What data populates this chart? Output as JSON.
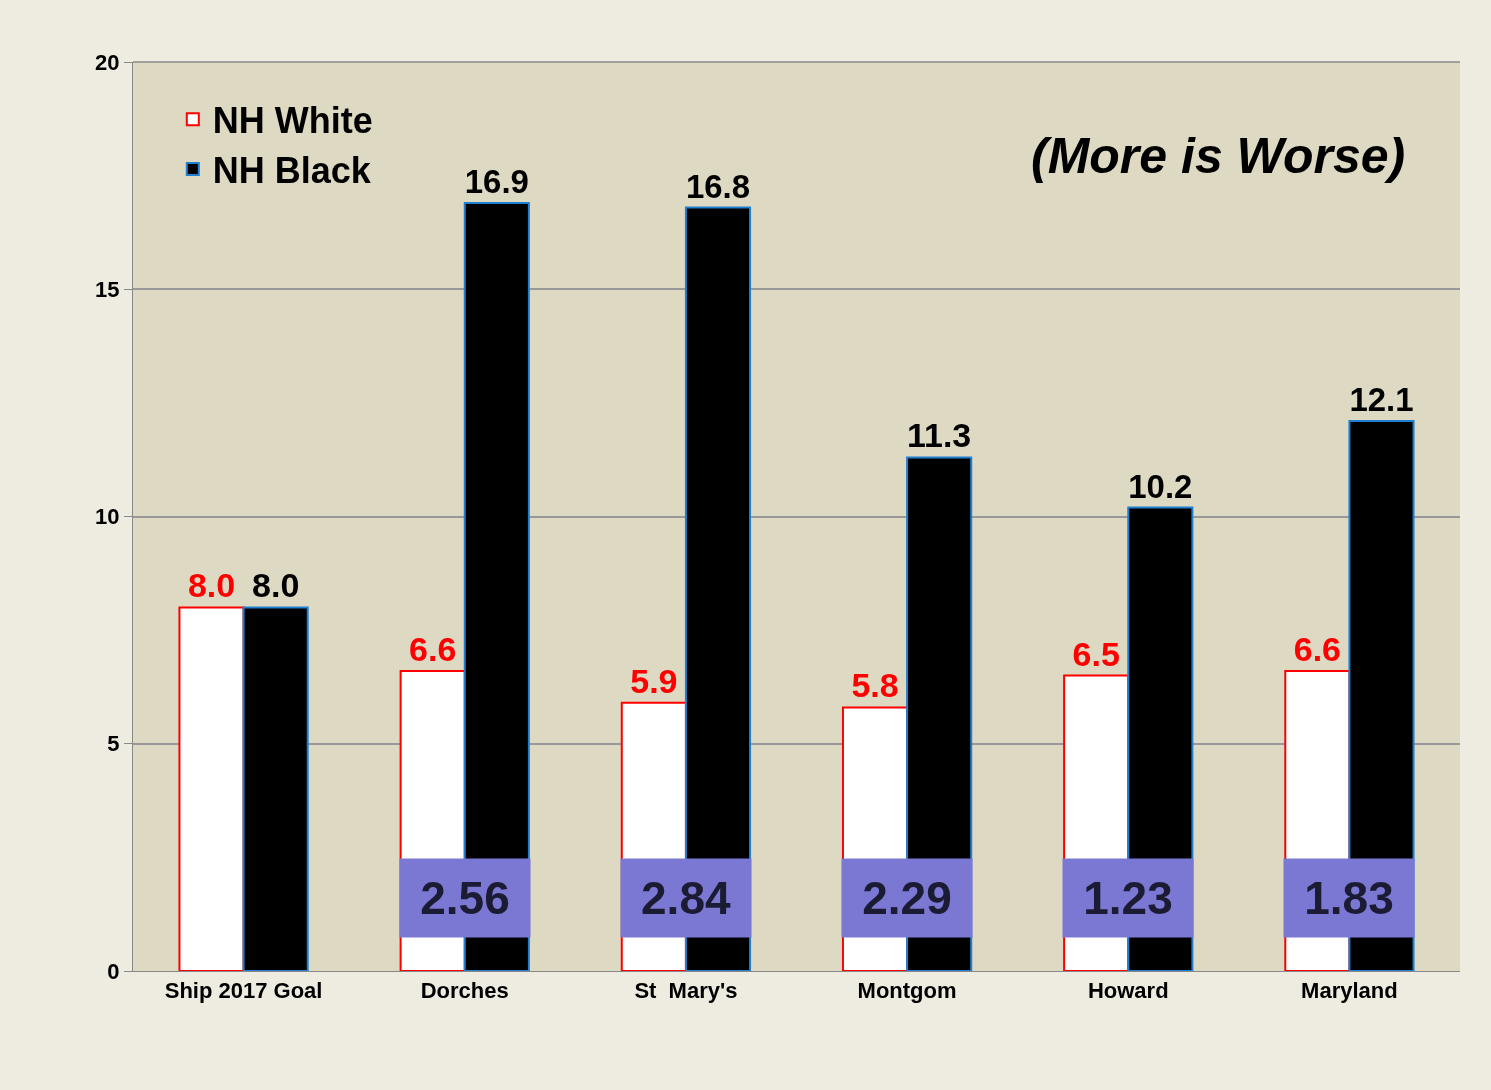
{
  "chart_data": {
    "type": "bar",
    "categories": [
      "Ship 2017 Goal",
      "Dorches",
      "St  Mary's",
      "Montgom",
      "Howard",
      "Maryland"
    ],
    "series": [
      {
        "name": "NH White",
        "color": "#ffffff",
        "values": [
          8.0,
          6.6,
          5.9,
          5.8,
          6.5,
          6.6
        ],
        "value_labels": [
          "8.0",
          "6.6",
          "5.9",
          "5.8",
          "6.5",
          "6.6"
        ]
      },
      {
        "name": "NH Black",
        "color": "#000000",
        "values": [
          8.0,
          16.9,
          16.8,
          11.3,
          10.2,
          12.1
        ],
        "value_labels": [
          "8.0",
          "16.9",
          "16.8",
          "11.3",
          "10.2",
          "12.1"
        ]
      }
    ],
    "ylim": [
      0,
      20
    ],
    "yticks": [
      0,
      5,
      10,
      15,
      20
    ],
    "grid": "y",
    "legend": "top left",
    "annotations": [
      "(More is Worse)",
      {
        "text": "2.56",
        "x": "Dorches",
        "y": 1.6
      },
      {
        "text": "2.84",
        "x": "St  Mary's",
        "y": 1.6
      },
      {
        "text": "2.29",
        "x": "Montgom",
        "y": 1.6
      },
      {
        "text": "1.23",
        "x": "Howard",
        "y": 1.6
      },
      {
        "text": "1.83",
        "x": "Maryland",
        "y": 1.6
      }
    ]
  }
}
